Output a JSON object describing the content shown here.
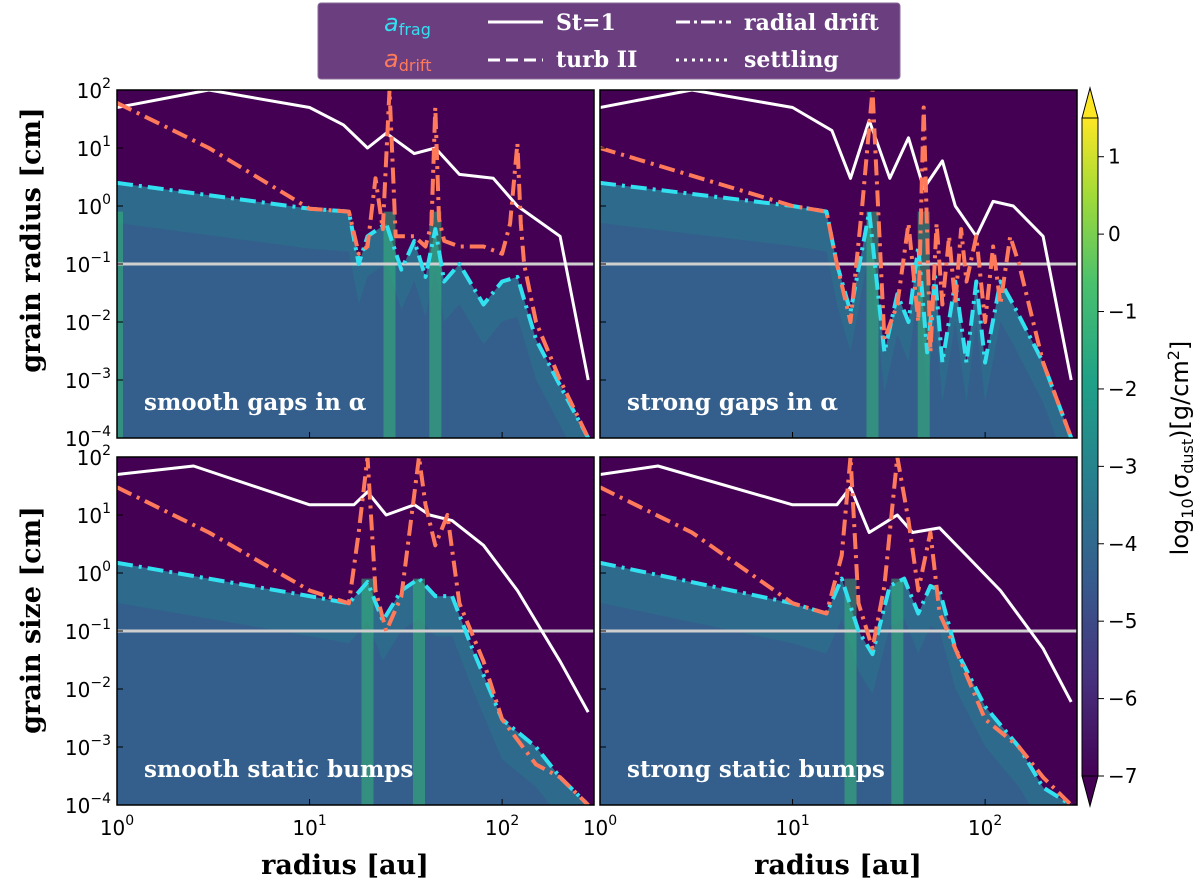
{
  "legend": {
    "a_frag_symbol": "a",
    "a_frag_sub": "frag",
    "a_drift_symbol": "a",
    "a_drift_sub": "drift",
    "st1": "St=1",
    "turb": "turb II",
    "radial_drift": "radial drift",
    "settling": "settling",
    "colors": {
      "frag": "#32e1f0",
      "drift": "#ff7a5a",
      "bg": "#6b3e80"
    }
  },
  "axes": {
    "xlabel": "radius [au]",
    "ylabel_top": "grain radius [cm]",
    "ylabel_bottom": "grain size [cm]",
    "x_ticks": [
      {
        "base": "10",
        "exp": "0"
      },
      {
        "base": "10",
        "exp": "1"
      },
      {
        "base": "10",
        "exp": "2"
      }
    ],
    "y_ticks": [
      {
        "base": "10",
        "exp": "2"
      },
      {
        "base": "10",
        "exp": "1"
      },
      {
        "base": "10",
        "exp": "0"
      },
      {
        "base": "10",
        "exp": "−1"
      },
      {
        "base": "10",
        "exp": "−2"
      },
      {
        "base": "10",
        "exp": "−3"
      },
      {
        "base": "10",
        "exp": "−4"
      }
    ]
  },
  "colorbar": {
    "label_pre": "log",
    "label_sub": "10",
    "label_post": "(σ",
    "label_sub2": "dust",
    "label_end": ")[g/cm",
    "label_sup": "2",
    "label_close": "]",
    "ticks": [
      "1",
      "0",
      "−1",
      "−2",
      "−3",
      "−4",
      "−5",
      "−6",
      "−7"
    ],
    "range": [
      -7,
      1.5
    ]
  },
  "chart_data": [
    {
      "type": "line",
      "title": "smooth gaps in α",
      "xscale": "log",
      "yscale": "log",
      "xlim": [
        1,
        300
      ],
      "ylim": [
        0.0001,
        100
      ],
      "series": [
        {
          "name": "St=1",
          "x": [
            1,
            3,
            10,
            15,
            20,
            25,
            35,
            45,
            60,
            90,
            120,
            200,
            280
          ],
          "y": [
            50,
            100,
            50,
            25,
            10,
            18,
            8,
            10,
            3.5,
            3,
            1,
            0.3,
            0.001
          ]
        },
        {
          "name": "a_frag",
          "x": [
            1,
            10,
            16,
            18,
            20,
            25,
            30,
            35,
            40,
            45,
            50,
            60,
            80,
            100,
            120,
            150,
            200,
            280
          ],
          "y": [
            2.5,
            0.9,
            0.8,
            0.1,
            0.3,
            0.5,
            0.08,
            0.25,
            0.06,
            0.4,
            0.05,
            0.1,
            0.02,
            0.05,
            0.06,
            0.005,
            0.0008,
            0.0001
          ]
        },
        {
          "name": "a_drift",
          "x": [
            1,
            3,
            10,
            16,
            18,
            20,
            22,
            24,
            26,
            28,
            35,
            40,
            43,
            45,
            47,
            50,
            60,
            80,
            100,
            110,
            120,
            125,
            130,
            150,
            200,
            280
          ],
          "y": [
            60,
            10,
            0.9,
            0.8,
            0.15,
            0.2,
            3,
            0.4,
            100,
            0.3,
            0.3,
            0.2,
            0.5,
            50,
            0.6,
            0.25,
            0.2,
            0.2,
            0.15,
            0.5,
            12,
            0.5,
            0.1,
            0.01,
            0.001,
            0.0001
          ]
        }
      ],
      "horizontal_line": 0.1
    },
    {
      "type": "line",
      "title": "strong gaps in α",
      "xscale": "log",
      "yscale": "log",
      "xlim": [
        1,
        300
      ],
      "ylim": [
        0.0001,
        100
      ],
      "series": [
        {
          "name": "St=1",
          "x": [
            1,
            3,
            10,
            16,
            20,
            25,
            32,
            40,
            48,
            60,
            70,
            90,
            110,
            140,
            200,
            280
          ],
          "y": [
            50,
            100,
            50,
            20,
            3,
            30,
            3,
            15,
            2,
            6,
            1,
            0.3,
            1.2,
            1,
            0.3,
            0.001
          ]
        },
        {
          "name": "a_frag",
          "x": [
            1,
            10,
            15,
            17,
            20,
            25,
            30,
            35,
            40,
            45,
            50,
            55,
            60,
            70,
            80,
            90,
            100,
            120,
            140,
            200,
            280
          ],
          "y": [
            2.5,
            1,
            0.8,
            0.1,
            0.015,
            0.8,
            0.003,
            0.03,
            0.01,
            0.2,
            0.003,
            0.06,
            0.002,
            0.05,
            0.002,
            0.05,
            0.002,
            0.05,
            0.02,
            0.002,
            0.0001
          ]
        },
        {
          "name": "a_drift",
          "x": [
            1,
            10,
            15,
            17,
            20,
            23,
            26,
            30,
            35,
            40,
            45,
            48,
            52,
            56,
            60,
            65,
            70,
            75,
            80,
            90,
            100,
            110,
            120,
            135,
            150,
            200,
            280
          ],
          "y": [
            10,
            1,
            0.8,
            0.1,
            0.01,
            1,
            100,
            0.005,
            0.02,
            0.5,
            0.01,
            50,
            0.003,
            0.5,
            0.02,
            0.3,
            0.02,
            0.4,
            0.05,
            0.3,
            0.01,
            0.2,
            0.02,
            0.3,
            0.1,
            0.002,
            0.0001
          ]
        }
      ],
      "horizontal_line": 0.1
    },
    {
      "type": "line",
      "title": "smooth static bumps",
      "xscale": "log",
      "yscale": "log",
      "xlim": [
        1,
        300
      ],
      "ylim": [
        0.0001,
        100
      ],
      "series": [
        {
          "name": "St=1",
          "x": [
            1,
            2.5,
            10,
            17,
            20,
            25,
            35,
            42,
            55,
            80,
            120,
            200,
            280
          ],
          "y": [
            50,
            70,
            15,
            15,
            25,
            10,
            15,
            10,
            8,
            3,
            0.5,
            0.03,
            0.004
          ]
        },
        {
          "name": "a_frag",
          "x": [
            1,
            10,
            16,
            20,
            24,
            30,
            37,
            45,
            55,
            70,
            100,
            150,
            200,
            280
          ],
          "y": [
            1.5,
            0.4,
            0.3,
            0.7,
            0.15,
            0.5,
            0.8,
            0.4,
            0.4,
            0.05,
            0.003,
            0.001,
            0.0003,
            0.0001
          ]
        },
        {
          "name": "a_drift",
          "x": [
            1,
            3,
            10,
            16,
            18,
            20,
            22,
            25,
            30,
            37,
            40,
            45,
            52,
            60,
            80,
            100,
            150,
            200,
            280
          ],
          "y": [
            30,
            5,
            0.5,
            0.3,
            5,
            100,
            0.5,
            0.1,
            0.4,
            100,
            15,
            3,
            10,
            0.3,
            0.03,
            0.003,
            0.0005,
            0.0003,
            0.0001
          ]
        }
      ],
      "horizontal_line": 0.1
    },
    {
      "type": "line",
      "title": "strong static bumps",
      "xscale": "log",
      "yscale": "log",
      "xlim": [
        1,
        300
      ],
      "ylim": [
        0.0001,
        100
      ],
      "series": [
        {
          "name": "St=1",
          "x": [
            1,
            2,
            10,
            17,
            20,
            25,
            35,
            42,
            58,
            80,
            120,
            200,
            280
          ],
          "y": [
            50,
            70,
            15,
            15,
            30,
            5,
            10,
            5,
            6,
            2,
            0.5,
            0.05,
            0.006
          ]
        },
        {
          "name": "a_frag",
          "x": [
            1,
            10,
            15,
            18,
            22,
            26,
            32,
            38,
            45,
            52,
            58,
            70,
            100,
            150,
            200,
            280
          ],
          "y": [
            1.5,
            0.3,
            0.2,
            0.8,
            0.1,
            0.04,
            0.6,
            0.8,
            0.2,
            0.6,
            0.5,
            0.05,
            0.005,
            0.001,
            0.0002,
            0.0001
          ]
        },
        {
          "name": "a_drift",
          "x": [
            1,
            3,
            10,
            15,
            18,
            20,
            22,
            26,
            30,
            35,
            40,
            45,
            52,
            58,
            70,
            100,
            150,
            200,
            280
          ],
          "y": [
            30,
            5,
            0.3,
            0.2,
            2,
            100,
            0.3,
            0.05,
            0.6,
            100,
            8,
            0.5,
            5,
            0.2,
            0.05,
            0.003,
            0.001,
            0.0003,
            0.0001
          ]
        }
      ],
      "horizontal_line": 0.1
    }
  ]
}
